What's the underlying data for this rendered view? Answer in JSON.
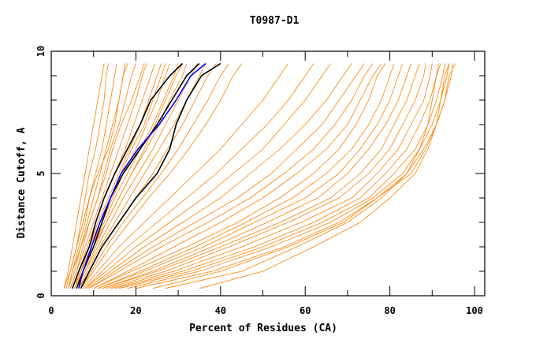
{
  "chart_data": {
    "type": "line",
    "title": "T0987-D1",
    "xlabel": "Percent of Residues (CA)",
    "ylabel": "Distance Cutoff, A",
    "xlim": [
      0,
      100
    ],
    "ylim": [
      0,
      10
    ],
    "x_ticks": [
      "0",
      "20",
      "40",
      "60",
      "80",
      "100"
    ],
    "y_ticks": [
      "0",
      "5",
      "10"
    ],
    "grid": false,
    "colors": {
      "models": "#ff8000",
      "reference": "#000000",
      "highlight": "#0000ff"
    },
    "y_levels": [
      0.3,
      1,
      2,
      3,
      4,
      5,
      6,
      7,
      8,
      9,
      9.5
    ],
    "series_orange": [
      [
        3,
        4,
        5,
        6,
        7,
        8,
        9,
        10,
        11,
        12,
        12.5
      ],
      [
        3.5,
        4.5,
        6,
        7,
        8,
        9,
        10.5,
        11.5,
        12.5,
        13,
        13.5
      ],
      [
        4,
        5,
        6.5,
        8,
        9,
        10.5,
        12,
        13,
        14,
        15,
        15.5
      ],
      [
        4,
        5.5,
        7,
        8.5,
        10,
        11.5,
        13,
        14.5,
        16,
        17,
        17.5
      ],
      [
        4.5,
        6,
        7.5,
        9,
        11,
        12.5,
        14,
        16,
        17.5,
        19,
        20
      ],
      [
        4.5,
        6,
        8,
        10,
        12,
        14,
        16,
        18,
        20,
        21.5,
        22.5
      ],
      [
        5,
        6.5,
        8.5,
        10.5,
        12.5,
        15,
        17.5,
        19.5,
        21.5,
        23.5,
        24.5
      ],
      [
        5,
        7,
        9,
        11,
        13.5,
        16,
        18.5,
        21,
        23,
        25,
        26
      ],
      [
        5.5,
        7,
        9.5,
        12,
        14.5,
        17,
        20,
        22.5,
        25,
        27,
        28
      ],
      [
        5.5,
        7.5,
        10,
        12.5,
        15,
        18,
        21,
        24,
        26.5,
        29,
        30
      ],
      [
        6,
        8,
        10.5,
        13,
        16,
        19,
        22.5,
        25.5,
        28,
        31,
        32
      ],
      [
        6,
        8,
        11,
        14,
        17,
        20.5,
        24,
        27,
        30,
        33,
        34.5
      ],
      [
        6.5,
        8.5,
        11.5,
        15,
        18.5,
        22,
        25.5,
        29,
        32,
        35,
        36.5
      ],
      [
        6.5,
        9,
        12,
        16,
        20,
        24,
        27.5,
        31,
        34,
        37,
        39
      ],
      [
        7,
        9.5,
        13,
        17,
        21.5,
        26,
        30,
        33.5,
        37,
        40,
        42
      ],
      [
        7,
        10,
        14,
        18.5,
        23,
        28,
        32.5,
        36.5,
        40,
        43,
        45
      ],
      [
        3,
        4.5,
        6,
        7.5,
        9,
        11,
        13.5,
        15,
        16,
        17,
        18
      ],
      [
        4,
        5,
        7,
        9,
        11,
        13,
        14.5,
        16.5,
        19,
        21,
        22
      ],
      [
        5,
        6.5,
        9,
        11.5,
        14,
        16.5,
        19,
        22,
        24,
        26,
        27
      ],
      [
        6,
        7.5,
        10,
        13,
        16,
        19,
        22,
        24.5,
        27,
        29.5,
        31
      ],
      [
        7.5,
        11,
        16,
        22,
        28,
        34,
        40,
        45,
        50,
        54,
        56
      ],
      [
        8,
        12,
        18,
        25,
        32,
        39,
        45,
        51,
        56,
        60,
        62
      ],
      [
        8,
        13,
        20,
        28,
        36,
        43,
        50,
        55,
        60,
        64,
        66
      ],
      [
        8.5,
        14,
        22,
        31,
        40,
        47,
        54,
        60,
        65,
        69,
        71
      ],
      [
        9,
        15,
        24,
        34,
        44,
        52,
        58,
        64,
        68,
        72,
        74
      ],
      [
        9,
        16,
        26,
        37,
        47,
        55,
        62,
        67,
        71,
        74,
        76
      ],
      [
        10,
        18,
        29,
        40,
        50,
        58,
        65,
        70,
        73,
        76,
        78
      ],
      [
        10,
        19,
        32,
        44,
        54,
        62,
        68,
        72,
        75,
        77,
        79
      ],
      [
        11,
        21,
        34,
        46,
        57,
        65,
        71,
        75,
        78,
        80,
        81
      ],
      [
        11,
        22,
        36,
        48,
        60,
        68,
        73,
        77,
        80,
        82,
        83
      ],
      [
        12,
        24,
        38,
        51,
        63,
        70,
        75,
        79,
        82,
        84,
        85
      ],
      [
        12,
        25,
        40,
        54,
        66,
        73,
        78,
        81,
        84,
        86,
        87
      ],
      [
        13,
        27,
        42,
        56,
        68,
        75,
        80,
        83,
        86,
        88,
        88.5
      ],
      [
        14,
        29,
        45,
        59,
        71,
        77,
        82,
        85,
        88,
        89.5,
        90
      ],
      [
        15,
        31,
        48,
        62,
        73,
        79,
        84,
        87,
        89.5,
        91,
        91.5
      ],
      [
        16,
        33,
        50,
        64,
        75,
        81,
        86,
        89,
        91,
        92.5,
        93
      ],
      [
        18,
        35,
        52,
        66,
        76,
        83,
        87,
        90,
        92,
        93.5,
        94
      ],
      [
        20,
        38,
        55,
        68,
        77,
        84,
        88,
        91,
        93,
        94.5,
        95
      ],
      [
        24,
        40,
        56,
        69,
        77,
        85,
        88.5,
        91,
        93,
        94,
        95.5
      ],
      [
        27,
        45,
        58,
        70,
        78,
        84,
        87,
        89,
        90,
        91,
        92
      ],
      [
        35,
        50,
        62,
        73,
        80,
        86,
        89,
        91,
        92,
        93,
        94
      ]
    ],
    "series_black": [
      [
        5,
        6.5,
        9,
        10.5,
        12.5,
        15,
        18,
        21,
        23.5,
        28,
        31
      ],
      [
        7,
        9,
        12,
        16,
        20,
        25,
        28,
        29.5,
        32,
        35.5,
        40
      ],
      [
        6,
        7.5,
        10,
        12,
        14,
        17,
        21,
        25,
        28.5,
        32,
        35
      ]
    ],
    "series_blue": [
      [
        6.5,
        7.5,
        9.5,
        11.5,
        14,
        16.5,
        20.5,
        25.5,
        29.5,
        33,
        36.5
      ]
    ]
  }
}
